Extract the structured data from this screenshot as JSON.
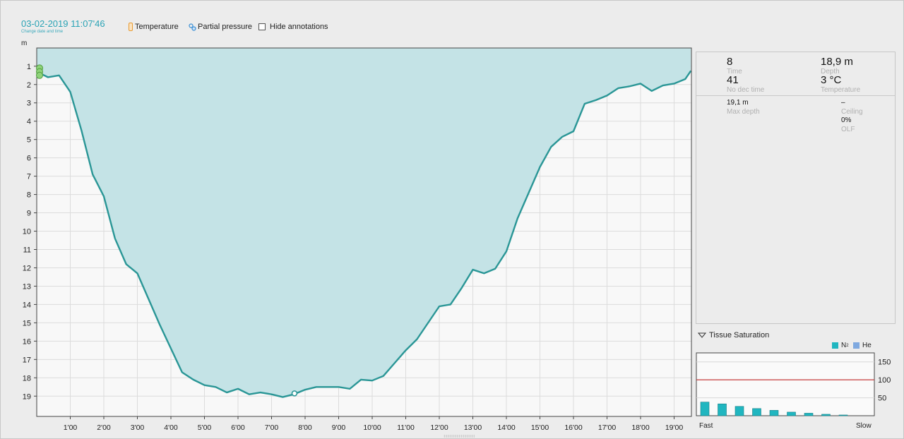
{
  "header": {
    "datetime": "03-02-2019 11:07'46",
    "datetime_sub": "Change date and time",
    "temperature_label": "Temperature",
    "partial_pressure_label": "Partial pressure",
    "hide_annotations_label": "Hide annotations",
    "hide_annotations_checked": false,
    "icons": [
      "thermometer-icon",
      "partial-pressure-icon"
    ],
    "accent_color": "#2aa3b5"
  },
  "chart_data": {
    "type": "area",
    "ylabel": "m",
    "y_inverted": true,
    "ylim": [
      0,
      19.3
    ],
    "xlim": [
      0,
      1170
    ],
    "grid": true,
    "y_ticks": [
      1,
      2,
      3,
      4,
      5,
      6,
      7,
      8,
      9,
      10,
      11,
      12,
      13,
      14,
      15,
      16,
      17,
      18,
      19
    ],
    "x_ticks": [
      {
        "t": 60,
        "label": "1'00"
      },
      {
        "t": 120,
        "label": "2'00"
      },
      {
        "t": 180,
        "label": "3'00"
      },
      {
        "t": 240,
        "label": "4'00"
      },
      {
        "t": 300,
        "label": "5'00"
      },
      {
        "t": 360,
        "label": "6'00"
      },
      {
        "t": 420,
        "label": "7'00"
      },
      {
        "t": 480,
        "label": "8'00"
      },
      {
        "t": 540,
        "label": "9'00"
      },
      {
        "t": 600,
        "label": "10'00"
      },
      {
        "t": 660,
        "label": "11'00"
      },
      {
        "t": 720,
        "label": "12'00"
      },
      {
        "t": 780,
        "label": "13'00"
      },
      {
        "t": 840,
        "label": "14'00"
      },
      {
        "t": 900,
        "label": "15'00"
      },
      {
        "t": 960,
        "label": "16'00"
      },
      {
        "t": 1020,
        "label": "17'00"
      },
      {
        "t": 1080,
        "label": "18'00"
      },
      {
        "t": 1140,
        "label": "19'00"
      }
    ],
    "series": [
      {
        "values": [
          [
            0,
            1.3
          ],
          [
            20,
            1.6
          ],
          [
            40,
            1.5
          ],
          [
            60,
            2.4
          ],
          [
            80,
            4.5
          ],
          [
            100,
            6.9
          ],
          [
            120,
            8.1
          ],
          [
            140,
            10.4
          ],
          [
            160,
            11.8
          ],
          [
            180,
            12.3
          ],
          [
            200,
            13.7
          ],
          [
            220,
            15.1
          ],
          [
            240,
            16.4
          ],
          [
            260,
            17.7
          ],
          [
            280,
            18.1
          ],
          [
            300,
            18.4
          ],
          [
            320,
            18.5
          ],
          [
            340,
            18.8
          ],
          [
            360,
            18.6
          ],
          [
            380,
            18.9
          ],
          [
            400,
            18.8
          ],
          [
            420,
            18.9
          ],
          [
            440,
            19.05
          ],
          [
            460,
            18.9
          ],
          [
            480,
            18.65
          ],
          [
            500,
            18.5
          ],
          [
            520,
            18.5
          ],
          [
            540,
            18.5
          ],
          [
            560,
            18.6
          ],
          [
            580,
            18.1
          ],
          [
            600,
            18.15
          ],
          [
            620,
            17.9
          ],
          [
            640,
            17.2
          ],
          [
            660,
            16.5
          ],
          [
            680,
            15.9
          ],
          [
            700,
            15.0
          ],
          [
            720,
            14.1
          ],
          [
            740,
            14.0
          ],
          [
            760,
            13.1
          ],
          [
            780,
            12.1
          ],
          [
            800,
            12.3
          ],
          [
            820,
            12.05
          ],
          [
            840,
            11.1
          ],
          [
            860,
            9.3
          ],
          [
            880,
            7.9
          ],
          [
            900,
            6.5
          ],
          [
            920,
            5.4
          ],
          [
            940,
            4.85
          ],
          [
            960,
            4.55
          ],
          [
            980,
            3.05
          ],
          [
            1000,
            2.85
          ],
          [
            1020,
            2.6
          ],
          [
            1040,
            2.2
          ],
          [
            1060,
            2.1
          ],
          [
            1080,
            1.95
          ],
          [
            1100,
            2.35
          ],
          [
            1120,
            2.05
          ],
          [
            1140,
            1.95
          ],
          [
            1160,
            1.7
          ],
          [
            1170,
            1.25
          ]
        ],
        "line_color": "#2a9696",
        "fill_color": "#c4e3e6"
      }
    ],
    "markers": [
      {
        "t": 461,
        "depth": 18.85
      }
    ],
    "start_markers": [
      {
        "t": 0,
        "depth": 1.1
      },
      {
        "t": 0,
        "depth": 1.3
      },
      {
        "t": 0,
        "depth": 1.5
      }
    ]
  },
  "info_panel": {
    "time_value": "8",
    "time_label": "Time",
    "depth_value": "18,9 m",
    "depth_label": "Depth",
    "ndl_value": "41",
    "ndl_label": "No dec time",
    "temp_value": "3 °C",
    "temp_label": "Temperature",
    "max_depth_value": "19,1 m",
    "max_depth_label": "Max depth",
    "ceiling_value": "–",
    "ceiling_label": "Ceiling",
    "olf_value": "0%",
    "olf_label": "OLF"
  },
  "tissue": {
    "title": "Tissue Saturation",
    "legend_n2": "N",
    "legend_n2_sub": "2",
    "legend_he": "He",
    "n2_color": "#20b6c0",
    "he_color": "#7fa9e0",
    "limit_color": "#c43a3a",
    "fast_label": "Fast",
    "slow_label": "Slow",
    "chart_data": {
      "type": "bar",
      "ylim": [
        0,
        175
      ],
      "y_ticks": [
        50,
        100,
        150
      ],
      "limit_line": 100,
      "n2_values": [
        38,
        33,
        26,
        20,
        15,
        10,
        7,
        4,
        2
      ]
    }
  }
}
